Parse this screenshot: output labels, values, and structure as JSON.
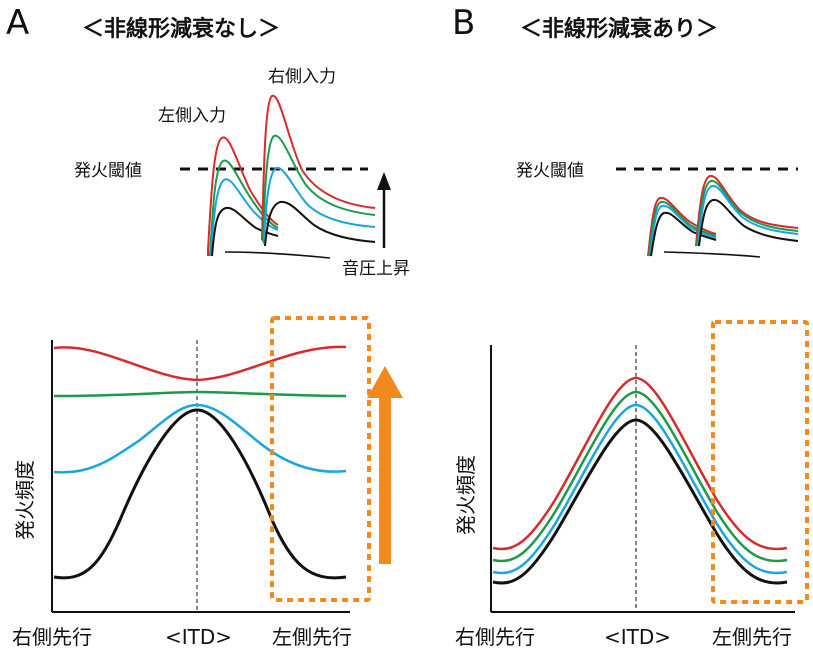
{
  "panel_a": {
    "letter": "A",
    "title": "＜非線形減衰なし＞",
    "threshold_label": "発火閾値",
    "left_input_label": "左側入力",
    "right_input_label": "右側入力",
    "sound_pressure_label": "音圧上昇",
    "ylabel": "発火頻度",
    "x_left": "右側先行",
    "x_center": "<ITD>",
    "x_right": "左側先行"
  },
  "panel_b": {
    "letter": "B",
    "title": "＜非線形減衰あり＞",
    "threshold_label": "発火閾値",
    "ylabel": "発火頻度",
    "x_left": "右側先行",
    "x_center": "<ITD>",
    "x_right": "左側先行"
  },
  "colors": {
    "red": "#d62b2b",
    "green": "#1a9a4a",
    "blue": "#1aa5df",
    "black": "#111111",
    "orange": "#f08a1e"
  }
}
